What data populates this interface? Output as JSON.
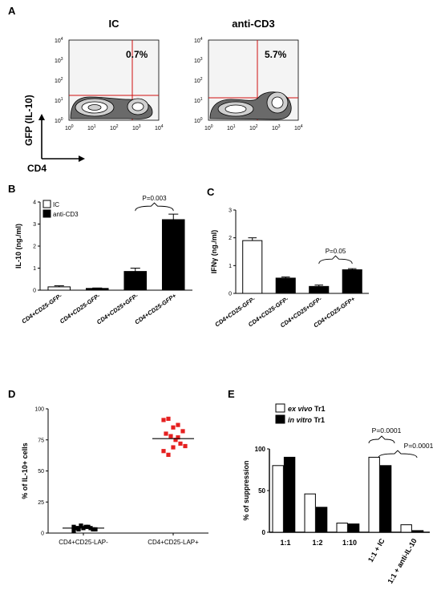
{
  "panels": {
    "A": {
      "letter": "A",
      "plots": [
        {
          "title": "IC",
          "quadrant_pct": "0.7%"
        },
        {
          "title": "anti-CD3",
          "quadrant_pct": "5.7%"
        }
      ],
      "ylabel": "GFP (IL-10)",
      "xlabel": "CD4",
      "tick_exponents": [
        "0",
        "1",
        "2",
        "3",
        "4"
      ]
    },
    "B": {
      "letter": "B"
    },
    "C": {
      "letter": "C"
    },
    "D": {
      "letter": "D"
    },
    "E": {
      "letter": "E"
    }
  },
  "chart_data": [
    {
      "id": "B",
      "type": "bar",
      "categories": [
        "CD4+CD25-GFP-",
        "CD4+CD25-GFP-",
        "CD4+CD25+GFP-",
        "CD4+CD25-GFP+"
      ],
      "series": [
        {
          "name": "IC",
          "values": [
            0.15,
            null,
            null,
            null
          ],
          "errors": [
            0.05,
            null,
            null,
            null
          ],
          "color": "#ffffff"
        },
        {
          "name": "anti-CD3",
          "values": [
            null,
            0.08,
            0.85,
            3.2
          ],
          "errors": [
            null,
            0.02,
            0.15,
            0.25
          ],
          "color": "#000000"
        }
      ],
      "ylabel": "IL-10 (ng./ml)",
      "ylim": [
        0,
        4
      ],
      "yticks": [
        0,
        1,
        2,
        3,
        4
      ],
      "annotation": "P=0.003",
      "legend_position": "top-left"
    },
    {
      "id": "C",
      "type": "bar",
      "categories": [
        "CD4+CD25-GFP-",
        "CD4+CD25-GFP-",
        "CD4+CD25+GFP-",
        "CD4+CD25-GFP+"
      ],
      "series": [
        {
          "name": "IC",
          "values": [
            1.9,
            null,
            null,
            null
          ],
          "errors": [
            0.1,
            null,
            null,
            null
          ],
          "color": "#ffffff"
        },
        {
          "name": "anti-CD3",
          "values": [
            null,
            0.55,
            0.25,
            0.85
          ],
          "errors": [
            null,
            0.04,
            0.05,
            0.04
          ],
          "color": "#000000"
        }
      ],
      "ylabel": "IFNγ (ng./ml)",
      "ylim": [
        0,
        3
      ],
      "yticks": [
        0,
        1,
        2,
        3
      ],
      "annotation": "P=0.05"
    },
    {
      "id": "D",
      "type": "scatter",
      "categories": [
        "CD4+CD25-LAP-",
        "CD4+CD25-LAP+"
      ],
      "groups": [
        {
          "values": [
            2,
            3,
            4,
            5,
            3,
            4,
            6,
            5,
            4,
            3,
            5,
            4
          ],
          "mean": 4,
          "color": "#000000"
        },
        {
          "values": [
            91,
            92,
            85,
            87,
            82,
            80,
            78,
            75,
            72,
            70,
            66,
            63,
            69,
            77
          ],
          "mean": 76,
          "color": "#e52020"
        }
      ],
      "ylabel": "% of IL-10+ cells",
      "ylim": [
        0,
        100
      ],
      "yticks": [
        0,
        25,
        50,
        75,
        100
      ]
    },
    {
      "id": "E",
      "type": "bar",
      "categories": [
        "1:1",
        "1:2",
        "1:10",
        "1:1 + IC",
        "1:1 + anti-IL-10"
      ],
      "series": [
        {
          "name_prefix": "ex vivo",
          "name_suffix": " Tr1",
          "values": [
            80,
            46,
            11,
            90,
            9
          ],
          "color": "#ffffff"
        },
        {
          "name_prefix": "in vitro",
          "name_suffix": " Tr1",
          "values": [
            90,
            30,
            10,
            80,
            2
          ],
          "color": "#000000"
        }
      ],
      "ylabel": "% of suppression",
      "ylim": [
        0,
        100
      ],
      "yticks": [
        0,
        50,
        100
      ],
      "yticklabels": [
        "0",
        "50",
        "100"
      ],
      "annotations": [
        "P=0.0001",
        "P=0.0001"
      ],
      "legend_position": "top-left"
    }
  ]
}
